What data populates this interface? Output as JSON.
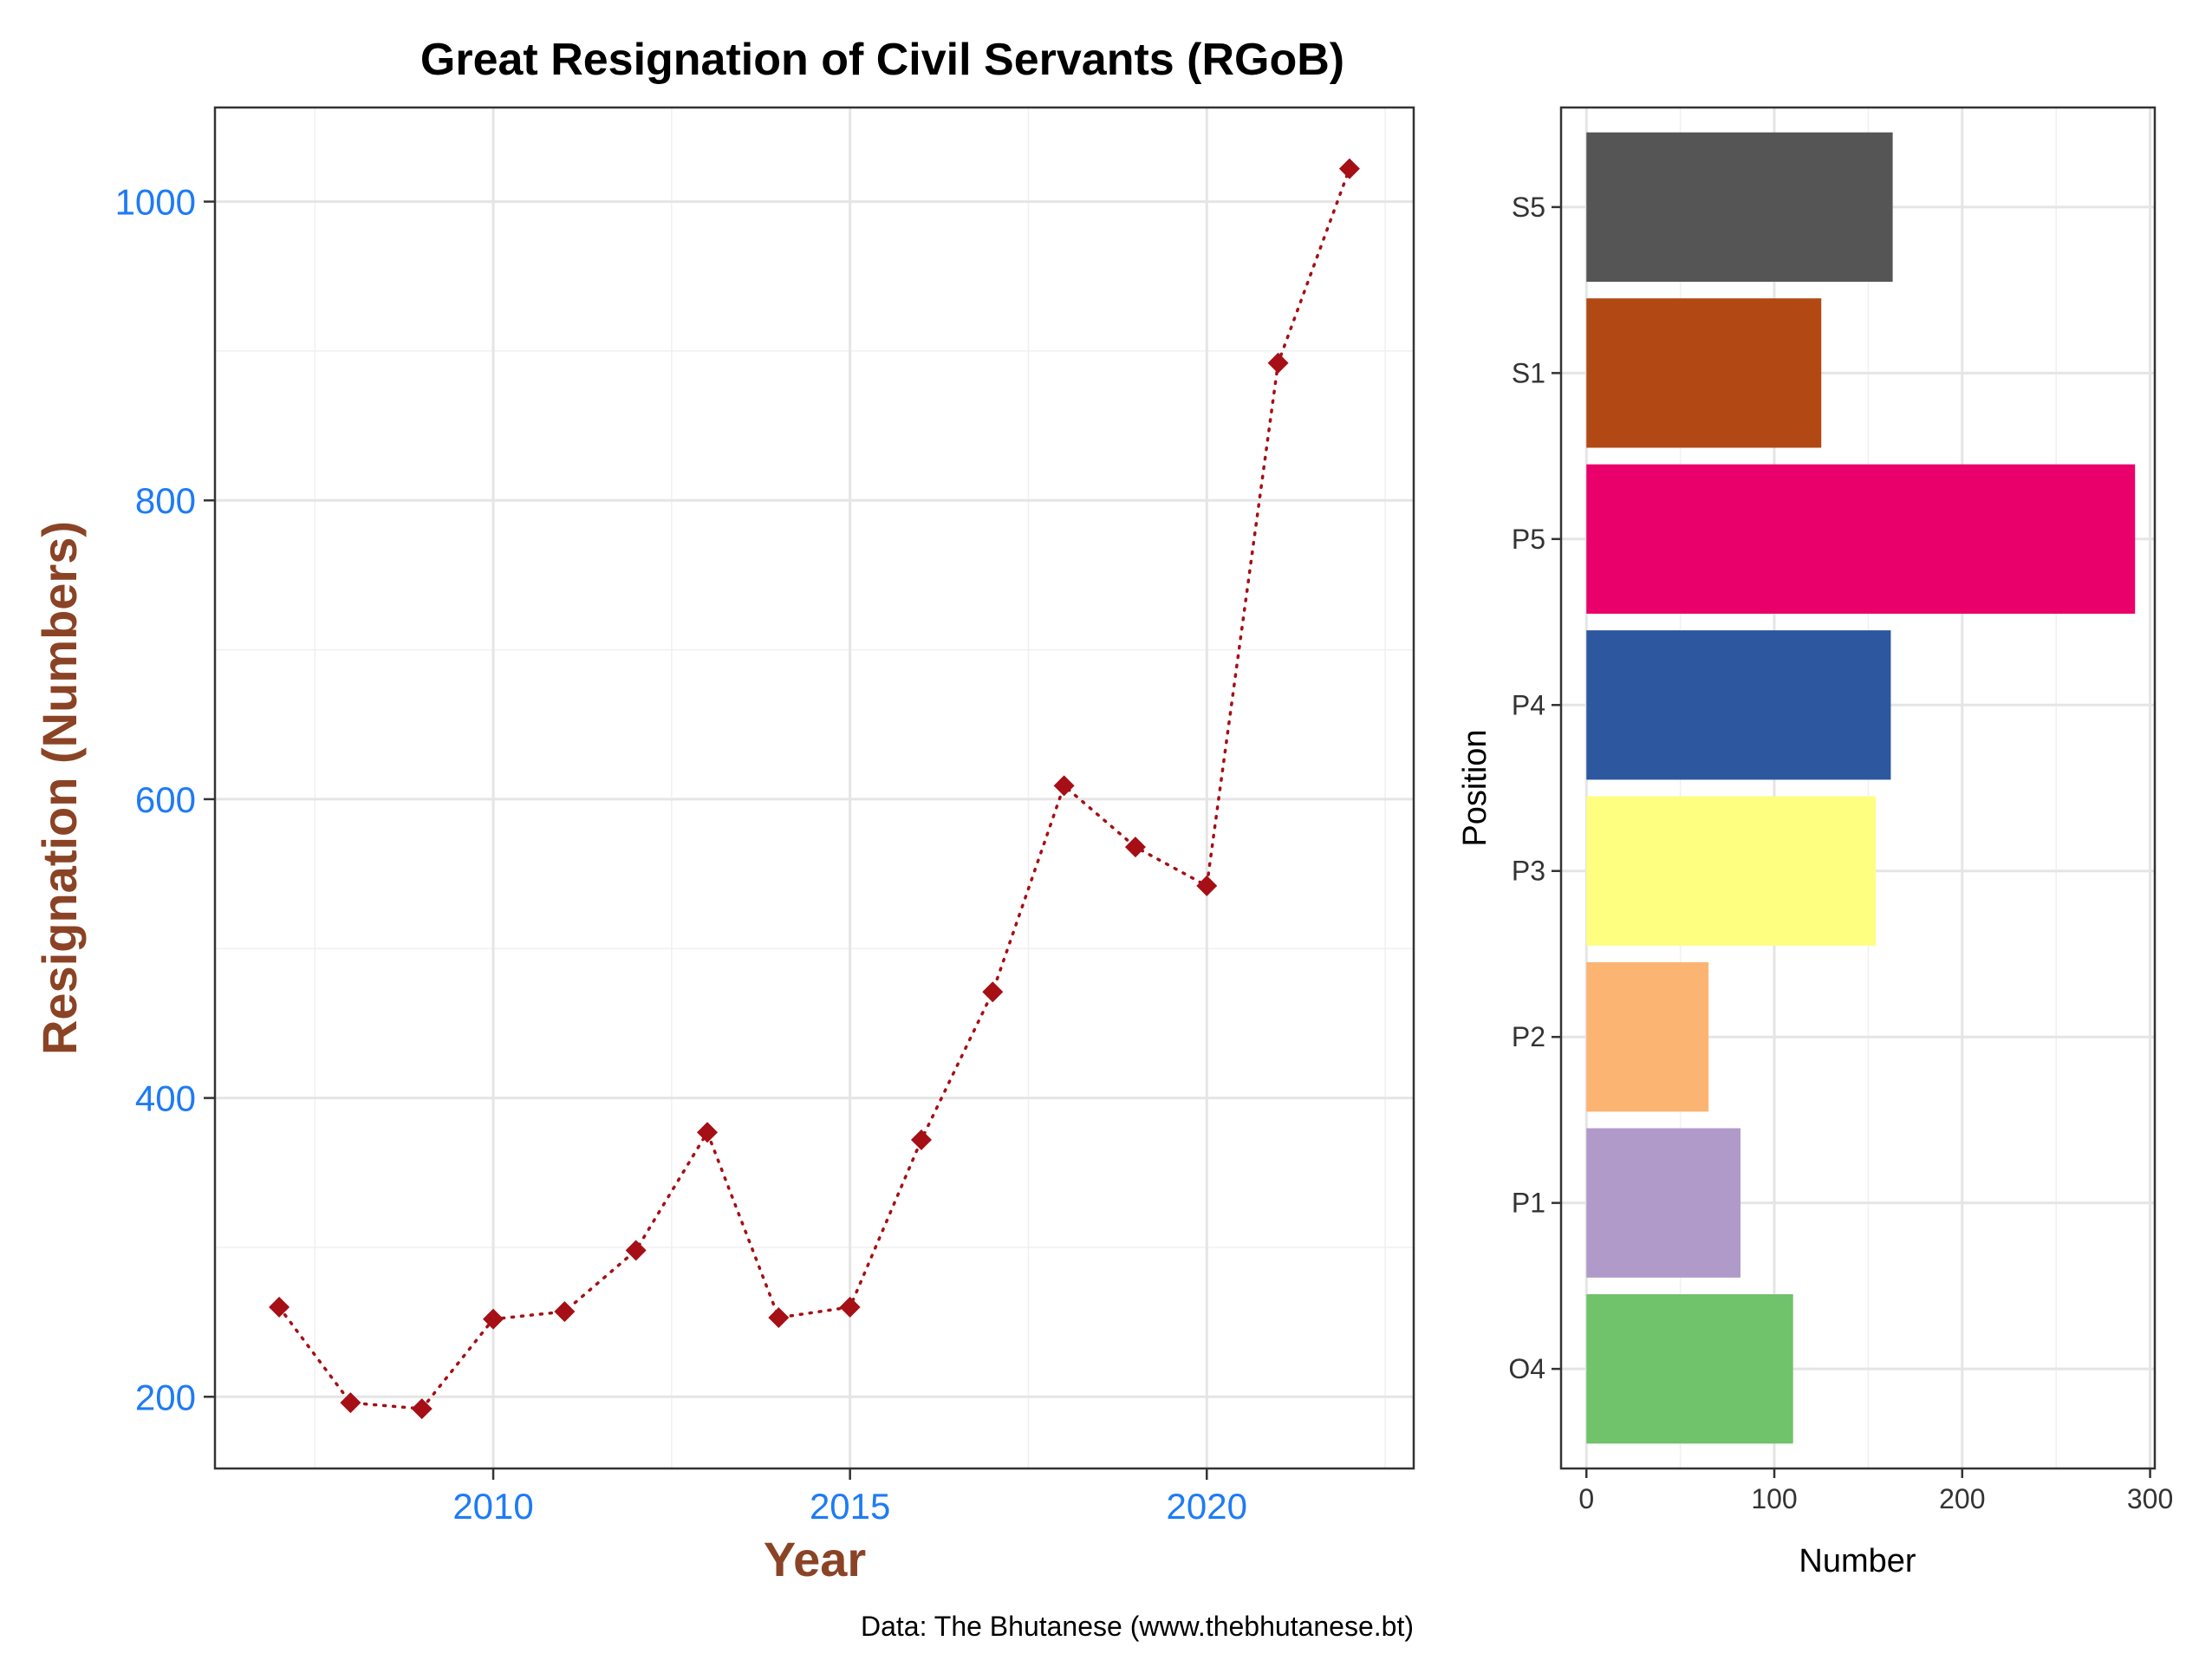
{
  "title": "Great Resignation of Civil Servants (RGoB)",
  "caption": "Data: The Bhutanese (www.thebhutanese.bt)",
  "colors": {
    "point": "#a50f15",
    "line": "#a50f15",
    "left_tick_label": "#1e7bf5",
    "left_axis_title": "#8b4326"
  },
  "chart_data": [
    {
      "type": "line",
      "style": "dotted line with diamond markers",
      "xlabel": "Year",
      "ylabel": "Resignation (Numbers)",
      "x": [
        2007,
        2008,
        2009,
        2010,
        2011,
        2012,
        2013,
        2014,
        2015,
        2016,
        2017,
        2018,
        2019,
        2020,
        2021,
        2022
      ],
      "y": [
        260,
        196,
        192,
        252,
        257,
        298,
        377,
        253,
        260,
        372,
        471,
        609,
        568,
        542,
        892,
        1022
      ],
      "xlim": [
        2006.1,
        2022.9
      ],
      "ylim": [
        152,
        1063
      ],
      "xticks": [
        2010,
        2015,
        2020
      ],
      "yticks": [
        200,
        400,
        600,
        800,
        1000
      ],
      "grid": true,
      "legend": "none"
    },
    {
      "type": "bar",
      "orientation": "horizontal",
      "xlabel": "Number",
      "ylabel": "Position",
      "categories": [
        "O4",
        "P1",
        "P2",
        "P3",
        "P4",
        "P5",
        "S1",
        "S5"
      ],
      "values": [
        110,
        82,
        65,
        154,
        162,
        292,
        125,
        163
      ],
      "bar_colors": [
        "#70c26b",
        "#b09ac9",
        "#fcb472",
        "#fefe80",
        "#2d579f",
        "#e9006a",
        "#b24814",
        "#555555"
      ],
      "xlim": [
        -13.5,
        302.5
      ],
      "xticks": [
        0,
        100,
        200,
        300
      ],
      "grid": true,
      "legend": "none"
    }
  ]
}
